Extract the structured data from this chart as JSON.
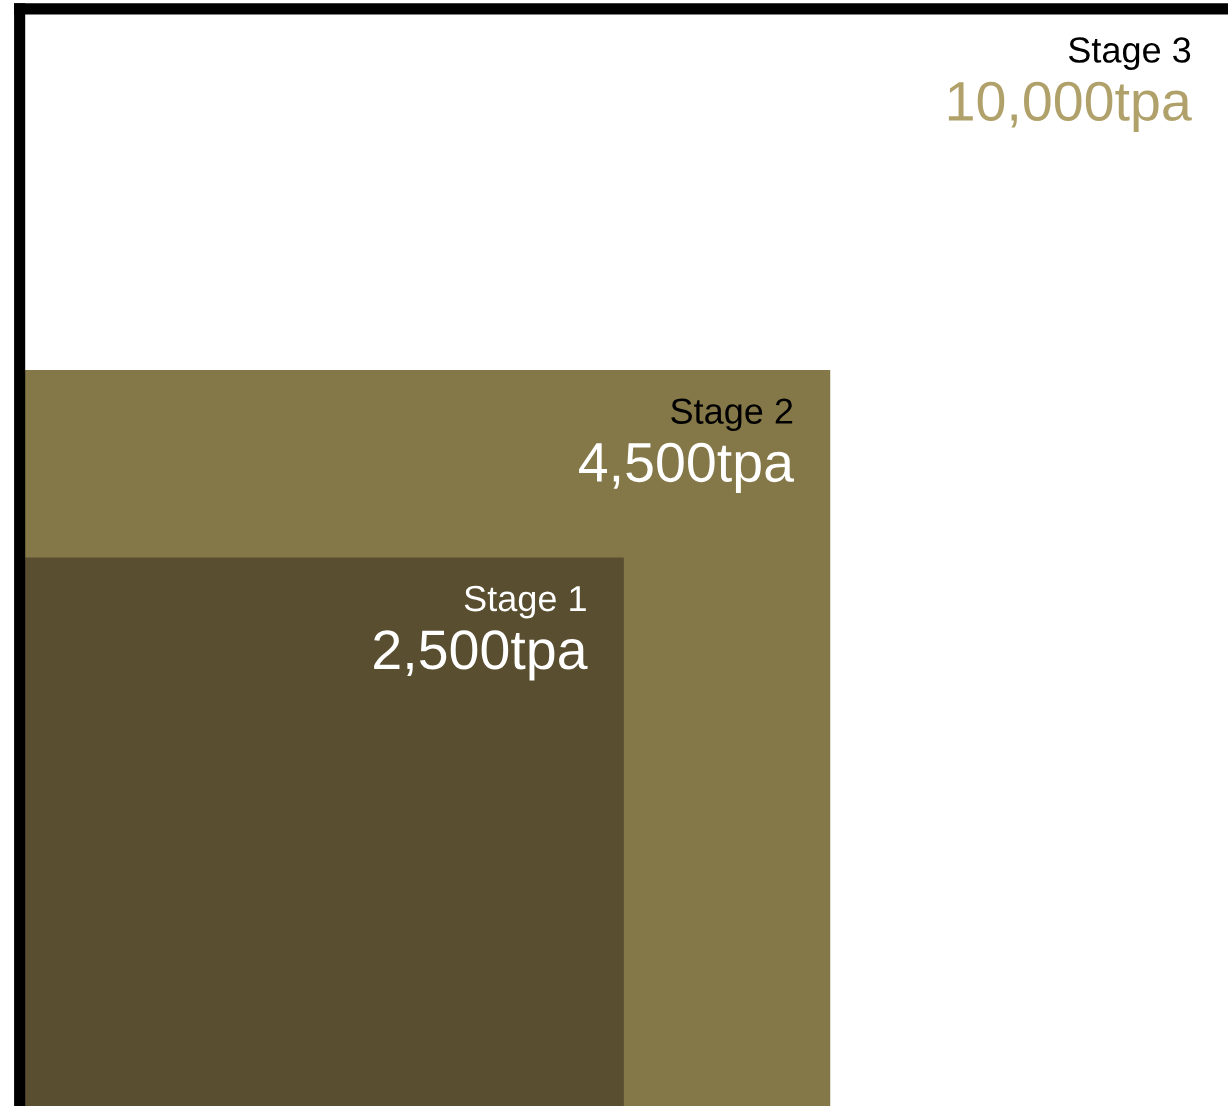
{
  "chart_data": {
    "type": "other",
    "categories": [
      "Stage 1",
      "Stage 2",
      "Stage 3"
    ],
    "values": [
      2500,
      4500,
      10000
    ],
    "value_labels": [
      "2,500tpa",
      "4,500tpa",
      "10,000tpa"
    ],
    "colors": [
      "#594f30",
      "#857848",
      "#ffffff"
    ]
  }
}
